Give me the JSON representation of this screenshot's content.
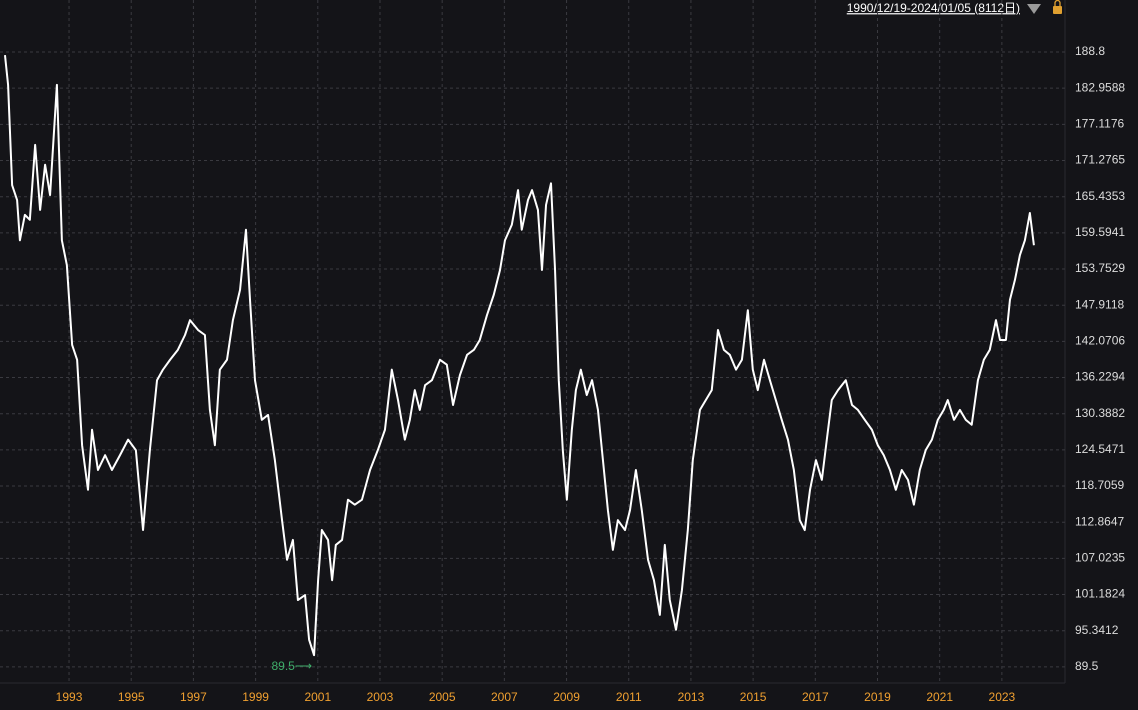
{
  "chart_data": {
    "type": "line",
    "range_label": "1990/12/19-2024/01/05 (8112日)",
    "color": "#ffffff",
    "grid": true,
    "x": [
      1990.94,
      1991.04,
      1991.17,
      1991.33,
      1991.42,
      1991.58,
      1991.74,
      1991.91,
      1992.07,
      1992.23,
      1992.39,
      1992.61,
      1992.77,
      1992.93,
      1993.1,
      1993.26,
      1993.42,
      1993.61,
      1993.74,
      1993.93,
      1994.16,
      1994.38,
      1994.64,
      1994.9,
      1995.15,
      1995.38,
      1995.6,
      1995.83,
      1996.02,
      1996.25,
      1996.5,
      1996.73,
      1996.89,
      1997.15,
      1997.37,
      1997.53,
      1997.69,
      1997.85,
      1998.08,
      1998.27,
      1998.5,
      1998.69,
      1998.82,
      1998.98,
      1999.2,
      1999.4,
      1999.62,
      1999.85,
      2000.01,
      2000.2,
      2000.36,
      2000.59,
      2000.72,
      2000.88,
      2001.01,
      2001.13,
      2001.33,
      2001.46,
      2001.58,
      2001.78,
      2001.97,
      2002.19,
      2002.42,
      2002.68,
      2002.93,
      2003.16,
      2003.38,
      2003.58,
      2003.8,
      2003.96,
      2004.12,
      2004.28,
      2004.45,
      2004.67,
      2004.93,
      2005.15,
      2005.35,
      2005.57,
      2005.8,
      2006.02,
      2006.21,
      2006.44,
      2006.66,
      2006.86,
      2007.02,
      2007.24,
      2007.44,
      2007.56,
      2007.76,
      2007.89,
      2008.08,
      2008.21,
      2008.34,
      2008.5,
      2008.63,
      2008.75,
      2008.88,
      2009.01,
      2009.17,
      2009.3,
      2009.46,
      2009.65,
      2009.82,
      2010.01,
      2010.17,
      2010.33,
      2010.49,
      2010.65,
      2010.88,
      2011.04,
      2011.23,
      2011.42,
      2011.62,
      2011.81,
      2012.0,
      2012.16,
      2012.32,
      2012.52,
      2012.71,
      2012.9,
      2013.06,
      2013.29,
      2013.48,
      2013.67,
      2013.87,
      2014.06,
      2014.25,
      2014.45,
      2014.64,
      2014.83,
      2014.99,
      2015.15,
      2015.35,
      2015.54,
      2015.73,
      2015.92,
      2016.12,
      2016.31,
      2016.5,
      2016.66,
      2016.83,
      2017.02,
      2017.21,
      2017.37,
      2017.53,
      2017.73,
      2017.98,
      2018.18,
      2018.37,
      2018.59,
      2018.82,
      2019.01,
      2019.2,
      2019.4,
      2019.59,
      2019.78,
      2019.98,
      2020.17,
      2020.36,
      2020.55,
      2020.75,
      2020.94,
      2021.13,
      2021.26,
      2021.46,
      2021.65,
      2021.84,
      2022.03,
      2022.23,
      2022.42,
      2022.61,
      2022.81,
      2022.94,
      2023.13,
      2023.26,
      2023.42,
      2023.58,
      2023.74,
      2023.9,
      2024.03
    ],
    "values": [
      188.3,
      183.5,
      167.3,
      164.9,
      158.4,
      162.5,
      161.7,
      173.8,
      163.3,
      170.6,
      165.7,
      183.5,
      158.4,
      154.4,
      141.5,
      139.1,
      125.3,
      118.1,
      127.8,
      121.3,
      123.7,
      121.3,
      123.7,
      126.2,
      124.5,
      111.6,
      124.5,
      135.8,
      137.5,
      139.1,
      140.7,
      143.1,
      145.5,
      143.9,
      143.1,
      131.0,
      125.3,
      137.5,
      139.1,
      145.5,
      150.4,
      160.1,
      148.8,
      135.8,
      129.4,
      130.2,
      122.9,
      113.2,
      106.8,
      110.0,
      100.3,
      101.1,
      93.9,
      91.4,
      103.5,
      111.6,
      110.0,
      103.5,
      109.2,
      110.0,
      116.5,
      115.7,
      116.5,
      121.3,
      124.5,
      127.8,
      137.5,
      132.6,
      126.2,
      129.4,
      134.2,
      131.0,
      135.0,
      135.8,
      139.1,
      138.3,
      131.8,
      136.6,
      139.9,
      140.7,
      142.3,
      146.3,
      149.6,
      153.6,
      158.4,
      160.9,
      166.5,
      160.1,
      164.9,
      166.5,
      163.3,
      153.6,
      164.1,
      167.6,
      153.6,
      135.8,
      124.5,
      116.5,
      127.8,
      134.2,
      137.5,
      133.4,
      135.8,
      131.0,
      122.9,
      114.8,
      108.4,
      113.2,
      111.6,
      114.8,
      121.3,
      114.8,
      106.8,
      103.5,
      97.9,
      109.2,
      100.3,
      95.5,
      101.9,
      111.6,
      122.9,
      131.0,
      132.6,
      134.2,
      143.9,
      140.7,
      139.9,
      137.5,
      139.1,
      147.1,
      137.5,
      134.2,
      139.1,
      135.8,
      132.6,
      129.4,
      126.2,
      121.3,
      113.2,
      111.6,
      118.1,
      122.9,
      119.7,
      126.2,
      132.6,
      134.2,
      135.8,
      131.8,
      131.0,
      129.4,
      127.8,
      125.3,
      123.7,
      121.3,
      118.1,
      121.3,
      119.7,
      115.7,
      121.3,
      124.5,
      126.2,
      129.4,
      131.0,
      132.6,
      129.4,
      131.0,
      129.4,
      128.6,
      135.8,
      139.1,
      140.7,
      145.5,
      142.3,
      142.3,
      148.8,
      152.0,
      156.0,
      158.4,
      162.8,
      157.6
    ],
    "xlim": [
      1990.78,
      2025.03
    ],
    "xticks": [
      1993,
      1995,
      1997,
      1999,
      2001,
      2003,
      2005,
      2007,
      2009,
      2011,
      2013,
      2015,
      2017,
      2019,
      2021,
      2023
    ],
    "ylim": [
      86.9,
      197.2
    ],
    "yticks": [
      89.5,
      95.3412,
      101.1824,
      107.0235,
      112.8647,
      118.7059,
      124.5471,
      130.3882,
      136.2294,
      142.0706,
      147.9118,
      153.7529,
      159.5941,
      165.4353,
      171.2765,
      177.1176,
      182.9588,
      188.8
    ],
    "annotations": [
      {
        "text": "89.5⟶",
        "x": 2000.88,
        "y": 89.5
      }
    ]
  }
}
